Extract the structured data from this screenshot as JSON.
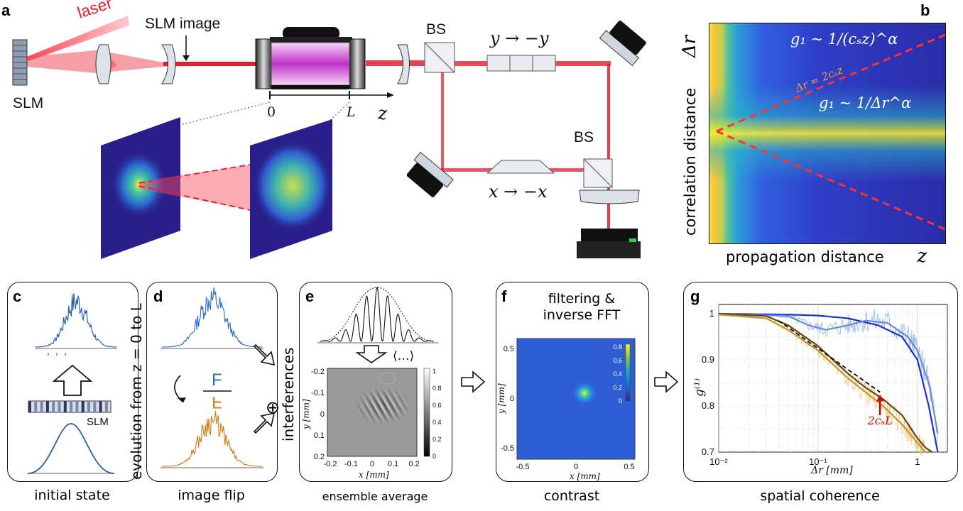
{
  "panels": {
    "a": {
      "label": "a",
      "laser": "laser",
      "slm_image": "SLM image",
      "slm": "SLM",
      "bs1": "BS",
      "bs2": "BS",
      "flip_y": "y → −y",
      "flip_x": "x → −x",
      "axis_zero": "0",
      "axis_L": "L",
      "axis_z": "z"
    },
    "b": {
      "label": "b",
      "eq_upper": "g₁ ~ 1/(cₛz)^α",
      "eq_lower": "g₁ ~ 1/Δr^α",
      "cone": "Δr = 2cₛz",
      "ylabel": "correlation distance",
      "ylabel_sym": "Δr",
      "xlabel": "propagation distance",
      "xlabel_sym": "z"
    },
    "c": {
      "label": "c",
      "slm": "SLM",
      "caption": "initial state"
    },
    "d": {
      "label": "d",
      "vertical": "evolution from z = 0 to L",
      "letter_top": "F",
      "letter_bottom": "F",
      "caption": "image flip",
      "oplus": "⊕"
    },
    "e": {
      "label": "e",
      "side": "interferences",
      "avg": "⟨…⟩",
      "caption": "ensemble average",
      "yticks": [
        "-0.2",
        "-0.1",
        "0",
        "0.1",
        "0.2"
      ],
      "xticks": [
        "-0.2",
        "-0.1",
        "0",
        "0.1",
        "0.2"
      ],
      "cbar": [
        "1",
        "0.8",
        "0.6",
        "0.4",
        "0.2",
        "0"
      ],
      "xlabel": "x [mm]",
      "ylabel": "y [mm]"
    },
    "f": {
      "label": "f",
      "title1": "filtering &",
      "title2": "inverse FFT",
      "caption": "contrast",
      "yticks": [
        "0.5",
        "0",
        "-0.5"
      ],
      "xticks": [
        "-0.5",
        "0",
        "0.5"
      ],
      "cbar": [
        "0.8",
        "0.6",
        "0.4",
        "0.2",
        "0"
      ],
      "xlabel": "x [mm]",
      "ylabel": "y [mm]"
    },
    "g": {
      "label": "g",
      "caption": "spatial coherence",
      "yticks": [
        "1",
        "0.9",
        "0.8",
        "0.7"
      ],
      "xticks": [
        "10⁻²",
        "10⁻¹",
        "1"
      ],
      "xlabel": "Δr [mm]",
      "ylabel": "g⁽¹⁾",
      "marker": "2cₛL"
    }
  },
  "chart_data": {
    "type": "line",
    "xlabel": "Δr [mm]",
    "ylabel": "g⁽¹⁾",
    "xscale": "log",
    "xlim": [
      0.01,
      2
    ],
    "ylim": [
      0.7,
      1.02
    ],
    "series": [
      {
        "color": "#1c2fd1",
        "x": [
          0.01,
          0.05,
          0.1,
          0.2,
          0.4,
          0.7,
          1.0,
          1.3,
          1.6
        ],
        "y": [
          1.0,
          0.998,
          0.996,
          0.99,
          0.975,
          0.95,
          0.9,
          0.8,
          0.7
        ]
      },
      {
        "color": "#6a8cc9",
        "x": [
          0.01,
          0.05,
          0.08,
          0.12,
          0.2,
          0.3,
          0.5,
          0.8,
          1.0,
          1.3,
          1.6
        ],
        "y": [
          1.0,
          0.995,
          0.975,
          0.965,
          0.975,
          0.985,
          0.98,
          0.95,
          0.92,
          0.85,
          0.74
        ]
      },
      {
        "color": "#5c4613",
        "x": [
          0.01,
          0.03,
          0.05,
          0.1,
          0.2,
          0.3,
          0.45,
          0.7,
          1.0,
          1.2,
          1.4
        ],
        "y": [
          1.0,
          0.995,
          0.975,
          0.93,
          0.87,
          0.84,
          0.815,
          0.78,
          0.73,
          0.71,
          0.7
        ]
      },
      {
        "color": "#c9932e",
        "x": [
          0.01,
          0.03,
          0.05,
          0.1,
          0.2,
          0.3,
          0.45,
          0.7,
          1.0,
          1.2
        ],
        "y": [
          0.998,
          0.99,
          0.965,
          0.92,
          0.86,
          0.83,
          0.8,
          0.76,
          0.72,
          0.7
        ]
      },
      {
        "color": "#000000",
        "dashed": true,
        "x": [
          0.04,
          0.42
        ],
        "y": [
          0.985,
          0.83
        ]
      }
    ],
    "annotations": [
      {
        "text": "2cₛL",
        "x": 0.42,
        "y": 0.78,
        "color": "#e00000"
      }
    ]
  }
}
